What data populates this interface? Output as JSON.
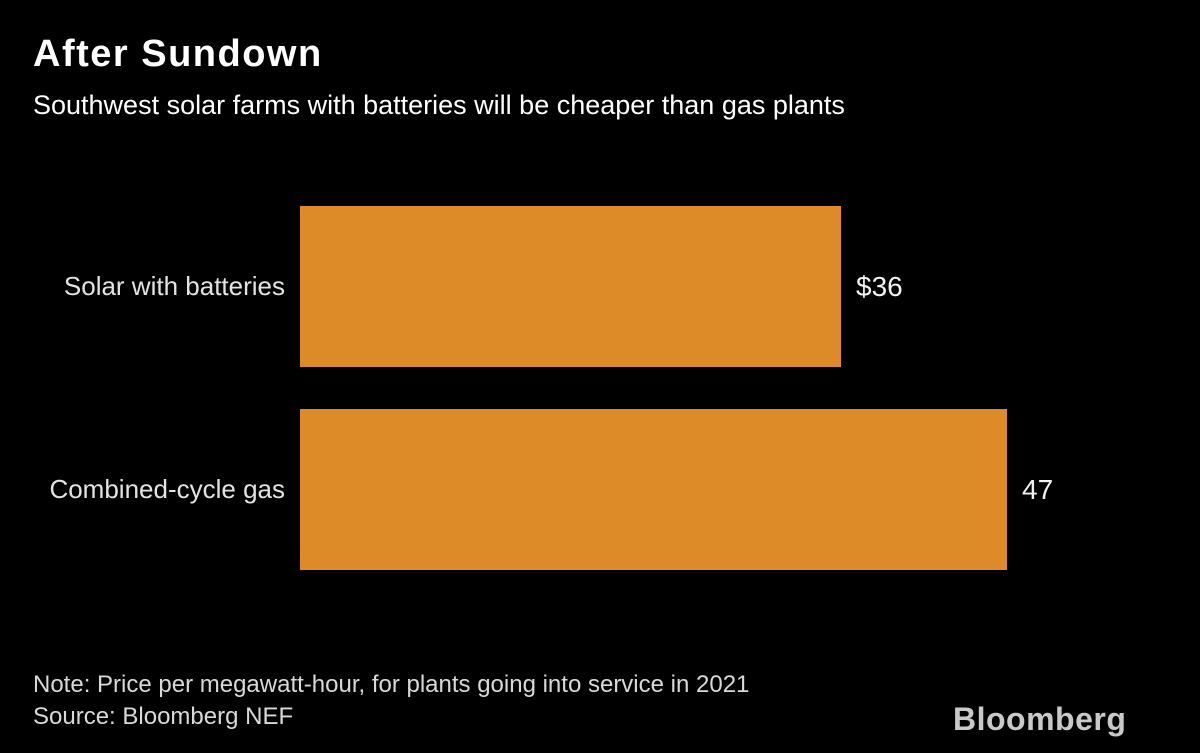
{
  "colors": {
    "background": "#000000",
    "bar": "#DC8B28",
    "title": "#FFFFFF",
    "subtitle": "#FFFFFF",
    "category_label": "#E3E3E3",
    "value_label": "#F2F2F2",
    "note": "#D9D9D9",
    "logo": "#C9C9C9"
  },
  "header": {
    "title": "After Sundown",
    "subtitle": "Southwest solar farms with batteries will be cheaper than gas plants"
  },
  "chart_data": {
    "type": "bar",
    "orientation": "horizontal",
    "title": "After Sundown",
    "subtitle": "Southwest solar farms with batteries will be cheaper than gas plants",
    "categories": [
      "Solar with batteries",
      "Combined-cycle gas"
    ],
    "values": [
      36,
      47
    ],
    "value_labels": [
      "$36",
      "47"
    ],
    "xlim": [
      0,
      48
    ],
    "bar_color": "#DC8B28",
    "grid": false,
    "axes_hidden": true,
    "note": "Note: Price per megawatt-hour, for plants going into service in 2021",
    "source": "Source: Bloomberg NEF"
  },
  "footer": {
    "note": "Note: Price per megawatt-hour, for plants going into service in 2021",
    "source": "Source: Bloomberg NEF",
    "logo": "Bloomberg"
  }
}
